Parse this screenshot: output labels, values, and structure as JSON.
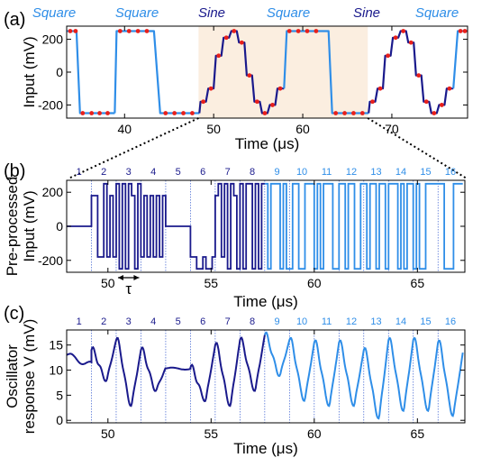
{
  "colors": {
    "dark": "#1a1a8c",
    "light": "#2f8ee8",
    "square_label": "#2f8ee8",
    "sine_label": "#1a1a8c",
    "highlight": "#fbeee0",
    "marker": "#e8201b",
    "segment_line": "#3a5fd0"
  },
  "top_labels": [
    {
      "text": "Square",
      "color": "light"
    },
    {
      "text": "Square",
      "color": "light"
    },
    {
      "text": "Sine",
      "color": "dark"
    },
    {
      "text": "Square",
      "color": "light"
    },
    {
      "text": "Sine",
      "color": "dark"
    },
    {
      "text": "Square",
      "color": "light"
    }
  ],
  "segment_numbers": [
    "1",
    "2",
    "3",
    "4",
    "5",
    "6",
    "7",
    "8",
    "9",
    "10",
    "11",
    "12",
    "13",
    "14",
    "15",
    "16"
  ],
  "tau_label": "τ",
  "chart_data": [
    {
      "panel": "(a)",
      "type": "line",
      "ylabel": "Input (mV)",
      "xlabel": "Time (μs)",
      "xlim": [
        33.5,
        78.5
      ],
      "ylim": [
        -280,
        280
      ],
      "xticks": [
        40,
        50,
        60,
        70
      ],
      "yticks": [
        200,
        0,
        -200
      ],
      "highlight": [
        48.3,
        67.3
      ],
      "sections": [
        {
          "name": "Square",
          "shape": "square",
          "x_range": [
            33.5,
            38.9
          ],
          "color": "light"
        },
        {
          "name": "Square",
          "shape": "square",
          "x_range": [
            38.9,
            48.4
          ],
          "color": "light"
        },
        {
          "name": "Sine",
          "shape": "sine",
          "x_range": [
            48.4,
            57.9
          ],
          "color": "dark"
        },
        {
          "name": "Square",
          "shape": "square",
          "x_range": [
            57.9,
            67.4
          ],
          "color": "light"
        },
        {
          "name": "Sine",
          "shape": "sine",
          "x_range": [
            67.4,
            76.9
          ],
          "color": "dark"
        },
        {
          "name": "Square",
          "shape": "square",
          "x_range": [
            76.9,
            78.5
          ],
          "color": "light"
        }
      ],
      "points": [
        [
          33.5,
          250
        ],
        [
          34.1,
          250
        ],
        [
          34.7,
          250
        ],
        [
          35.3,
          250
        ],
        [
          35.1,
          -250
        ],
        [
          36.1,
          -250
        ],
        [
          37.1,
          -250
        ],
        [
          38.1,
          -250
        ],
        [
          38.9,
          -250
        ],
        [
          39.0,
          250
        ],
        [
          40.2,
          250
        ],
        [
          41.4,
          250
        ],
        [
          42.6,
          250
        ],
        [
          43.8,
          250
        ],
        [
          44.0,
          -250
        ],
        [
          45.2,
          -250
        ],
        [
          46.4,
          -250
        ],
        [
          47.6,
          -250
        ],
        [
          48.4,
          -250
        ],
        [
          48.8,
          -180
        ],
        [
          49.6,
          -100
        ],
        [
          50.4,
          100
        ],
        [
          51.3,
          210
        ],
        [
          52.4,
          250
        ],
        [
          53.6,
          180
        ],
        [
          54.4,
          -20
        ],
        [
          55.3,
          -180
        ],
        [
          56.3,
          -250
        ],
        [
          57.3,
          -200
        ],
        [
          57.9,
          -100
        ],
        [
          58.3,
          250
        ],
        [
          59.5,
          250
        ],
        [
          60.7,
          250
        ],
        [
          61.9,
          250
        ],
        [
          63.1,
          250
        ],
        [
          63.3,
          -250
        ],
        [
          64.5,
          -250
        ],
        [
          65.7,
          -250
        ],
        [
          66.9,
          -250
        ],
        [
          67.7,
          -180
        ],
        [
          68.5,
          -100
        ],
        [
          69.3,
          100
        ],
        [
          70.2,
          210
        ],
        [
          71.3,
          250
        ],
        [
          72.5,
          180
        ],
        [
          73.3,
          -20
        ],
        [
          74.2,
          -180
        ],
        [
          75.2,
          -250
        ],
        [
          76.2,
          -200
        ],
        [
          76.8,
          -100
        ],
        [
          77.5,
          250
        ],
        [
          78.3,
          250
        ]
      ]
    },
    {
      "panel": "(b)",
      "type": "line",
      "ylabel": "Pre-processed Input (mV)",
      "xlabel": "Time (μs)",
      "xlim": [
        48.0,
        67.3
      ],
      "ylim": [
        -270,
        270
      ],
      "xticks": [
        50,
        55,
        60,
        65
      ],
      "yticks": [
        200,
        0,
        -200
      ],
      "segment_bounds": [
        48.0,
        49.2,
        50.4,
        51.6,
        52.8,
        54.0,
        55.2,
        56.4,
        57.6,
        58.8,
        60.0,
        61.2,
        62.4,
        63.6,
        64.8,
        66.0,
        67.2
      ]
    },
    {
      "panel": "(c)",
      "type": "line",
      "ylabel": "Oscillator response V (mV)",
      "xlabel": "Time (μs)",
      "xlim": [
        48.0,
        67.3
      ],
      "ylim": [
        -0.5,
        18
      ],
      "xticks": [
        50,
        55,
        60,
        65
      ],
      "yticks": [
        15,
        10,
        5,
        0
      ],
      "segment_bounds": [
        48.0,
        49.2,
        50.4,
        51.6,
        52.8,
        54.0,
        55.2,
        56.4,
        57.6,
        58.8,
        60.0,
        61.2,
        62.4,
        63.6,
        64.8,
        66.0,
        67.2
      ]
    }
  ]
}
